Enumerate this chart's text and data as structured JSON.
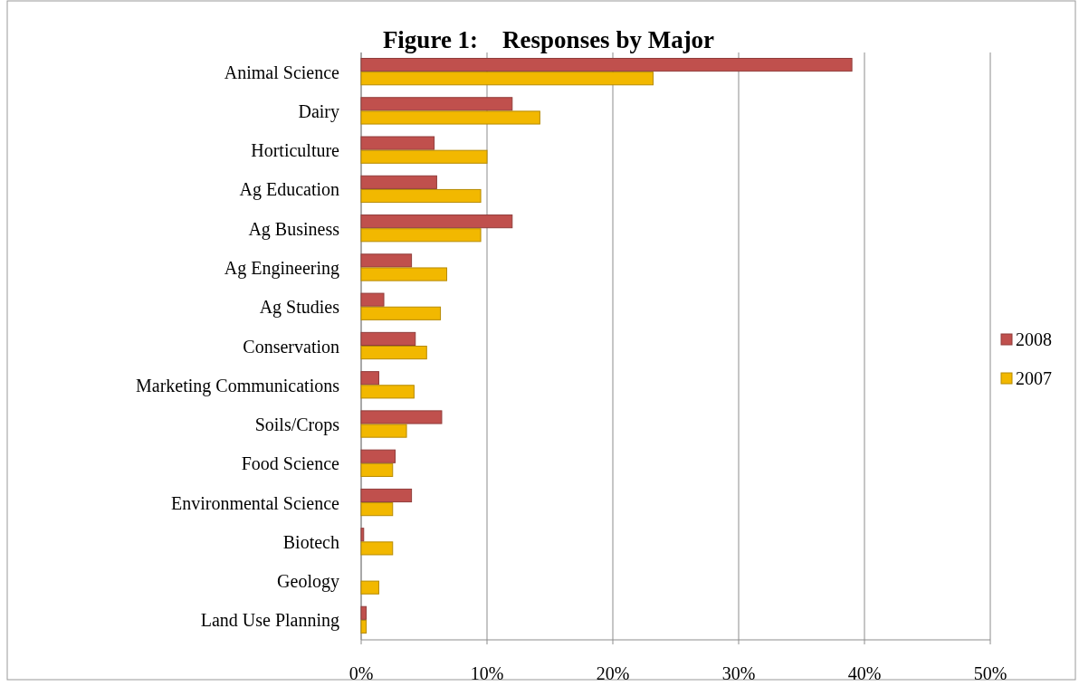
{
  "chart_data": {
    "type": "bar",
    "title": "Figure 1:    Responses by Major",
    "orientation": "horizontal",
    "categories": [
      "Animal Science",
      "Dairy",
      "Horticulture",
      "Ag Education",
      "Ag Business",
      "Ag Engineering",
      "Ag Studies",
      "Conservation",
      "Marketing Communications",
      "Soils/Crops",
      "Food Science",
      "Environmental Science",
      "Biotech",
      "Geology",
      "Land Use Planning"
    ],
    "series": [
      {
        "name": "2008",
        "color": "#c0504d",
        "values": [
          39,
          12,
          5.8,
          6,
          12,
          4,
          1.8,
          4.3,
          1.4,
          6.4,
          2.7,
          4,
          0.2,
          0,
          0.4
        ]
      },
      {
        "name": "2007",
        "color": "#f2b800",
        "values": [
          23.2,
          14.2,
          10,
          9.5,
          9.5,
          6.8,
          6.3,
          5.2,
          4.2,
          3.6,
          2.5,
          2.5,
          2.5,
          1.4,
          0.4
        ]
      }
    ],
    "xlim": [
      0,
      50
    ],
    "xticks": [
      {
        "value": 0,
        "label": "0%"
      },
      {
        "value": 10,
        "label": "10%"
      },
      {
        "value": 20,
        "label": "20%"
      },
      {
        "value": 30,
        "label": "30%"
      },
      {
        "value": 40,
        "label": "40%"
      },
      {
        "value": 50,
        "label": "50%"
      }
    ],
    "grid": "x",
    "legend": "right"
  }
}
